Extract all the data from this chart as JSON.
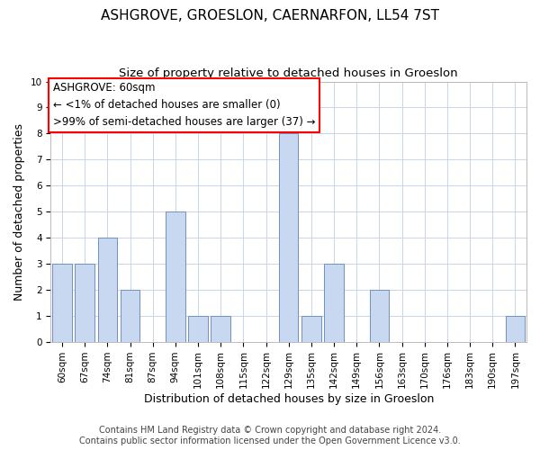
{
  "title": "ASHGROVE, GROESLON, CAERNARFON, LL54 7ST",
  "subtitle": "Size of property relative to detached houses in Groeslon",
  "xlabel": "Distribution of detached houses by size in Groeslon",
  "ylabel": "Number of detached properties",
  "bar_color": "#c8d8f0",
  "bar_edge_color": "#7090c0",
  "categories": [
    "60sqm",
    "67sqm",
    "74sqm",
    "81sqm",
    "87sqm",
    "94sqm",
    "101sqm",
    "108sqm",
    "115sqm",
    "122sqm",
    "129sqm",
    "135sqm",
    "142sqm",
    "149sqm",
    "156sqm",
    "163sqm",
    "170sqm",
    "176sqm",
    "183sqm",
    "190sqm",
    "197sqm"
  ],
  "values": [
    3,
    3,
    4,
    2,
    0,
    5,
    1,
    1,
    0,
    0,
    8,
    1,
    3,
    0,
    2,
    0,
    0,
    0,
    0,
    0,
    1
  ],
  "ylim": [
    0,
    10
  ],
  "yticks": [
    0,
    1,
    2,
    3,
    4,
    5,
    6,
    7,
    8,
    9,
    10
  ],
  "ann_line1": "ASHGROVE: 60sqm",
  "ann_line2": "← <1% of detached houses are smaller (0)",
  "ann_line3": ">99% of semi-detached houses are larger (37) →",
  "footer_line1": "Contains HM Land Registry data © Crown copyright and database right 2024.",
  "footer_line2": "Contains public sector information licensed under the Open Government Licence v3.0.",
  "background_color": "#ffffff",
  "grid_color": "#c8d4e8",
  "title_fontsize": 11,
  "subtitle_fontsize": 9.5,
  "axis_label_fontsize": 9,
  "tick_fontsize": 7.5,
  "annotation_fontsize": 8.5,
  "footer_fontsize": 7
}
